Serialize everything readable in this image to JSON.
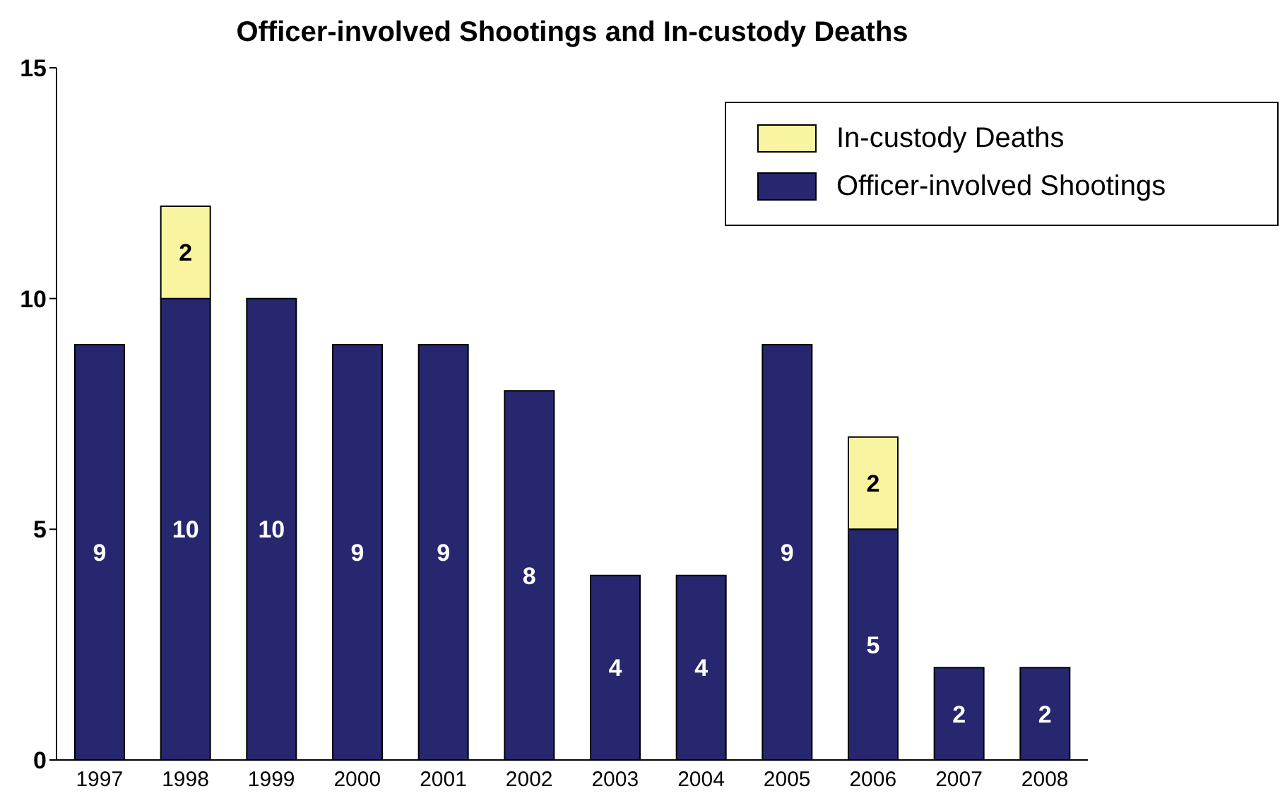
{
  "chart_data": {
    "type": "bar",
    "title": "Officer-involved Shootings and In-custody Deaths",
    "categories": [
      "1997",
      "1998",
      "1999",
      "2000",
      "2001",
      "2002",
      "2003",
      "2004",
      "2005",
      "2006",
      "2007",
      "2008"
    ],
    "series": [
      {
        "name": "Officer-involved Shootings",
        "color": "#27276f",
        "values": [
          9,
          10,
          10,
          9,
          9,
          8,
          4,
          4,
          9,
          5,
          2,
          2
        ]
      },
      {
        "name": "In-custody Deaths",
        "color": "#f8f4a0",
        "values": [
          null,
          2,
          null,
          null,
          null,
          null,
          null,
          null,
          null,
          2,
          null,
          null
        ]
      }
    ],
    "stacked": true,
    "ylim": [
      0,
      15
    ],
    "yticks": [
      0,
      5,
      10,
      15
    ],
    "legend": "top right",
    "data_labels": true
  }
}
